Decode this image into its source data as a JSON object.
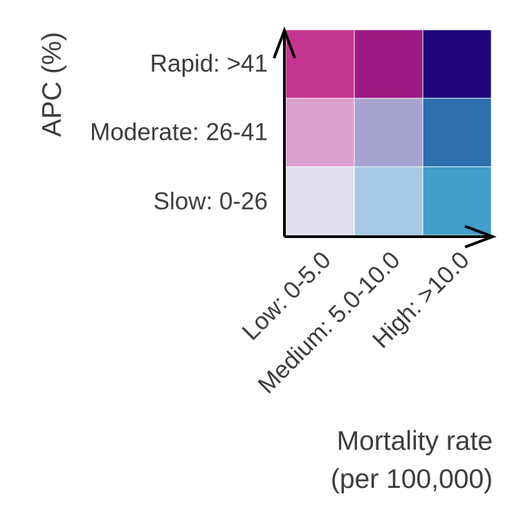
{
  "chart_data": {
    "type": "heatmap",
    "title": "",
    "xlabel_lines": [
      "Mortality rate",
      "(per 100,000)"
    ],
    "ylabel": "APC (%)",
    "x_categories": [
      "Low: 0-5.0",
      "Medium: 5.0-10.0",
      "High: >10.0"
    ],
    "y_categories": [
      "Slow: 0-26",
      "Moderate: 26-41",
      "Rapid: >41"
    ],
    "cells": [
      {
        "x": 0,
        "y": 0,
        "color": "#e2e0ee"
      },
      {
        "x": 1,
        "y": 0,
        "color": "#a6c9e3"
      },
      {
        "x": 2,
        "y": 0,
        "color": "#429fc9"
      },
      {
        "x": 0,
        "y": 1,
        "color": "#dca0ce"
      },
      {
        "x": 1,
        "y": 1,
        "color": "#a7a2cf"
      },
      {
        "x": 2,
        "y": 1,
        "color": "#2e6fae"
      },
      {
        "x": 0,
        "y": 2,
        "color": "#c43592"
      },
      {
        "x": 1,
        "y": 2,
        "color": "#9e1a84"
      },
      {
        "x": 2,
        "y": 2,
        "color": "#1f077b"
      }
    ],
    "colors": {
      "text": "#3d3d3d",
      "axis": "#000000",
      "cell_border": "#ffffff"
    }
  }
}
